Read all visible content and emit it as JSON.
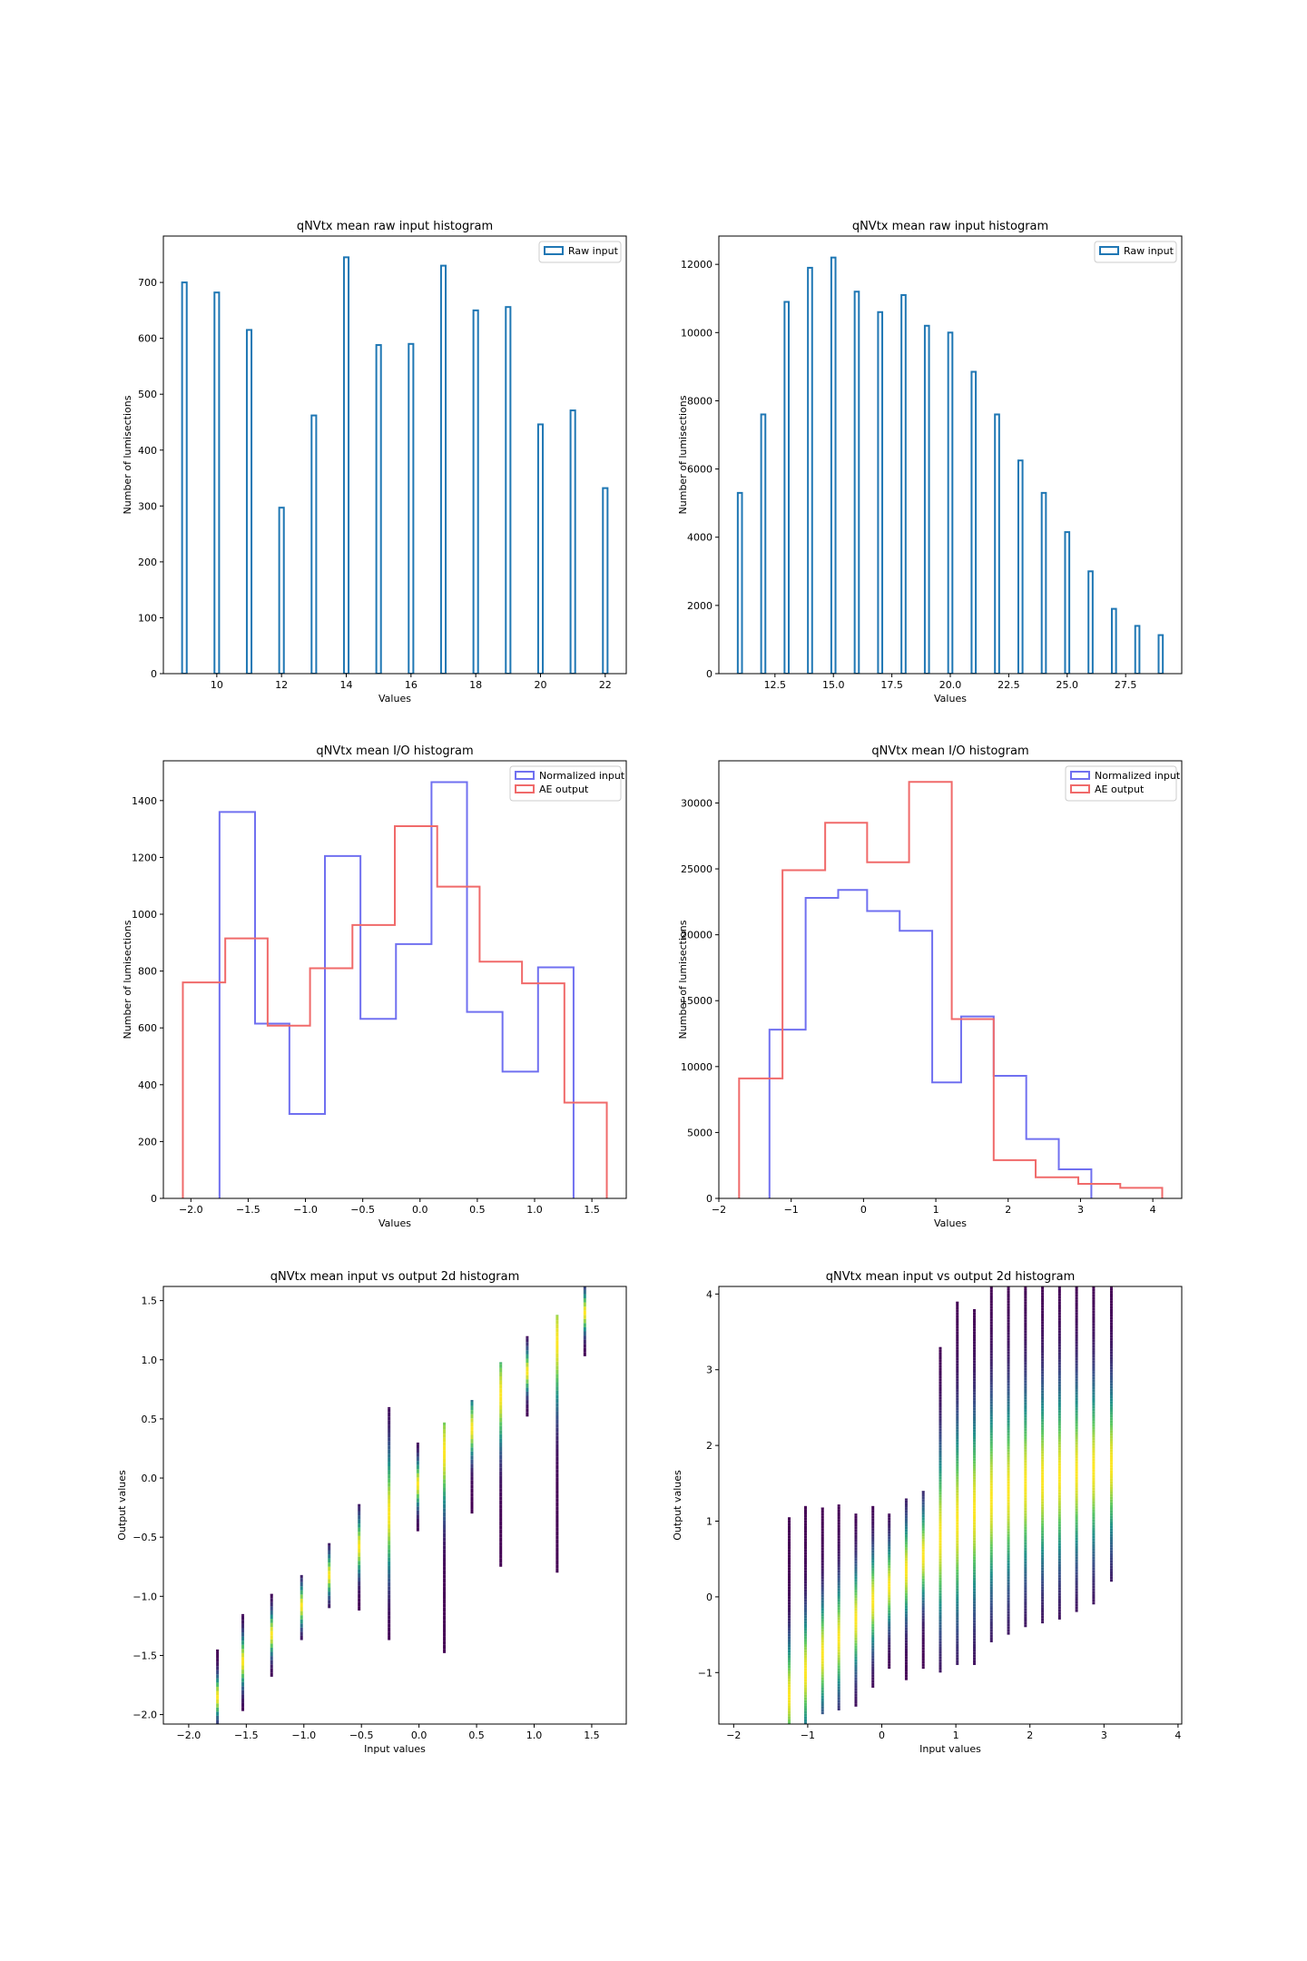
{
  "chart_data": [
    {
      "type": "bar",
      "title": "qNVtx mean raw input histogram",
      "xlabel": "Values",
      "ylabel": "Number of lumisections",
      "xlim": [
        8.35,
        22.65
      ],
      "ylim": [
        0,
        783
      ],
      "xticks": [
        10,
        12,
        14,
        16,
        18,
        20,
        22
      ],
      "yticks": [
        0,
        100,
        200,
        300,
        400,
        500,
        600,
        700
      ],
      "bar_width": 0.143,
      "histtype": "step",
      "legend_position": "upper-right",
      "series": [
        {
          "name": "Raw input",
          "color": "#1f77b4",
          "x": [
            9,
            10,
            11,
            12,
            13,
            14,
            15,
            16,
            17,
            18,
            19,
            20,
            21,
            22
          ],
          "values": [
            700,
            682,
            615,
            297,
            462,
            745,
            588,
            590,
            730,
            650,
            656,
            446,
            471,
            332
          ]
        }
      ]
    },
    {
      "type": "bar",
      "title": "qNVtx mean raw input histogram",
      "xlabel": "Values",
      "ylabel": "Number of lumisections",
      "xlim": [
        10.1,
        29.9
      ],
      "ylim": [
        0,
        12830
      ],
      "xticks": [
        12.5,
        15.0,
        17.5,
        20.0,
        22.5,
        25.0,
        27.5
      ],
      "xtick_labels": [
        "12.5",
        "15.0",
        "17.5",
        "20.0",
        "22.5",
        "25.0",
        "27.5"
      ],
      "yticks": [
        0,
        2000,
        4000,
        6000,
        8000,
        10000,
        12000
      ],
      "bar_width": 0.18,
      "histtype": "step",
      "legend_position": "upper-right",
      "series": [
        {
          "name": "Raw input",
          "color": "#1f77b4",
          "x": [
            11,
            12,
            13,
            14,
            15,
            16,
            17,
            18,
            19,
            20,
            21,
            22,
            23,
            24,
            25,
            26,
            27,
            28,
            29
          ],
          "values": [
            5300,
            7600,
            10900,
            11900,
            12200,
            11200,
            10600,
            11100,
            10200,
            10000,
            8850,
            7600,
            6250,
            5300,
            4150,
            3000,
            1900,
            1400,
            1130
          ]
        }
      ]
    },
    {
      "type": "line",
      "title": "qNVtx mean I/O histogram",
      "xlabel": "Values",
      "ylabel": "Number of lumisections",
      "xlim": [
        -2.24,
        1.8
      ],
      "ylim": [
        0,
        1540
      ],
      "xticks": [
        -2.0,
        -1.5,
        -1.0,
        -0.5,
        0.0,
        0.5,
        1.0,
        1.5
      ],
      "xtick_labels": [
        "−2.0",
        "−1.5",
        "−1.0",
        "−0.5",
        "0.0",
        "0.5",
        "1.0",
        "1.5"
      ],
      "yticks": [
        0,
        200,
        400,
        600,
        800,
        1000,
        1200,
        1400
      ],
      "histtype": "step",
      "legend_position": "upper-right",
      "series": [
        {
          "name": "Normalized input",
          "color": "#7070f0",
          "edges": [
            -1.75,
            -1.44,
            -1.14,
            -0.83,
            -0.52,
            -0.21,
            0.1,
            0.41,
            0.72,
            1.03,
            1.34
          ],
          "values": [
            1360,
            615,
            297,
            1205,
            632,
            895,
            1465,
            656,
            446,
            813
          ]
        },
        {
          "name": "AE output",
          "color": "#f06a6a",
          "edges": [
            -2.07,
            -1.7,
            -1.33,
            -0.96,
            -0.59,
            -0.22,
            0.15,
            0.52,
            0.89,
            1.26,
            1.63
          ],
          "values": [
            760,
            915,
            608,
            810,
            962,
            1310,
            1097,
            833,
            757,
            337
          ]
        }
      ]
    },
    {
      "type": "line",
      "title": "qNVtx mean I/O histogram",
      "xlabel": "Values",
      "ylabel": "Number of lumisections",
      "xlim": [
        -2.0,
        4.4
      ],
      "ylim": [
        0,
        33200
      ],
      "xticks": [
        -2,
        -1,
        0,
        1,
        2,
        3,
        4
      ],
      "xtick_labels": [
        "−2",
        "−1",
        "0",
        "1",
        "2",
        "3",
        "4"
      ],
      "yticks": [
        0,
        5000,
        10000,
        15000,
        20000,
        25000,
        30000
      ],
      "histtype": "step",
      "legend_position": "upper-right",
      "series": [
        {
          "name": "Normalized input",
          "color": "#7070f0",
          "edges": [
            -1.3,
            -0.8,
            -0.35,
            0.05,
            0.5,
            0.95,
            1.35,
            1.8,
            2.25,
            2.7,
            3.15
          ],
          "values": [
            12800,
            22800,
            23400,
            21800,
            20300,
            8800,
            13800,
            9300,
            4500,
            2200
          ]
        },
        {
          "name": "AE output",
          "color": "#f06a6a",
          "edges": [
            -1.72,
            -1.12,
            -0.53,
            0.05,
            0.63,
            1.22,
            1.8,
            2.38,
            2.97,
            3.55,
            4.13
          ],
          "values": [
            9100,
            24900,
            28500,
            25500,
            31600,
            13600,
            2900,
            1600,
            1100,
            800
          ]
        }
      ]
    },
    {
      "type": "heatmap",
      "title": "qNVtx mean input vs output 2d histogram",
      "xlabel": "Input values",
      "ylabel": "Output values",
      "xlim": [
        -2.22,
        1.8
      ],
      "ylim": [
        -2.08,
        1.62
      ],
      "xticks": [
        -2.0,
        -1.5,
        -1.0,
        -0.5,
        0.0,
        0.5,
        1.0,
        1.5
      ],
      "xtick_labels": [
        "−2.0",
        "−1.5",
        "−1.0",
        "−0.5",
        "0.0",
        "0.5",
        "1.0",
        "1.5"
      ],
      "yticks": [
        -2.0,
        -1.5,
        -1.0,
        -0.5,
        0.0,
        0.5,
        1.0,
        1.5
      ],
      "ytick_labels": [
        "−2.0",
        "−1.5",
        "−1.0",
        "−0.5",
        "0.0",
        "0.5",
        "1.0",
        "1.5"
      ],
      "colormap": [
        "#440154",
        "#3b528b",
        "#21918c",
        "#5ec962",
        "#fde725"
      ],
      "columns": [
        {
          "x": -1.75,
          "range": [
            -2.08,
            -1.45
          ],
          "center": -1.85
        },
        {
          "x": -1.53,
          "range": [
            -1.97,
            -1.15
          ],
          "center": -1.55
        },
        {
          "x": -1.28,
          "range": [
            -1.68,
            -0.98
          ],
          "center": -1.32
        },
        {
          "x": -1.02,
          "range": [
            -1.37,
            -0.82
          ],
          "center": -1.08
        },
        {
          "x": -0.78,
          "range": [
            -1.1,
            -0.55
          ],
          "center": -0.82
        },
        {
          "x": -0.52,
          "range": [
            -1.12,
            -0.22
          ],
          "center": -0.58
        },
        {
          "x": -0.26,
          "range": [
            -1.37,
            0.6
          ],
          "center": -0.3
        },
        {
          "x": -0.01,
          "range": [
            -0.45,
            0.3
          ],
          "center": -0.05
        },
        {
          "x": 0.22,
          "range": [
            -1.48,
            0.47
          ],
          "center": 0.22
        },
        {
          "x": 0.46,
          "range": [
            -0.3,
            0.66
          ],
          "center": 0.42
        },
        {
          "x": 0.71,
          "range": [
            -0.75,
            0.98
          ],
          "center": 0.7
        },
        {
          "x": 0.94,
          "range": [
            0.52,
            1.2
          ],
          "center": 0.9
        },
        {
          "x": 1.2,
          "range": [
            -0.8,
            1.38
          ],
          "center": 1.15
        },
        {
          "x": 1.44,
          "range": [
            1.03,
            1.62
          ],
          "center": 1.4
        }
      ]
    },
    {
      "type": "heatmap",
      "title": "qNVtx mean input vs output 2d histogram",
      "xlabel": "Input values",
      "ylabel": "Output values",
      "xlim": [
        -2.2,
        4.05
      ],
      "ylim": [
        -1.68,
        4.1
      ],
      "xticks": [
        -2,
        -1,
        0,
        1,
        2,
        3,
        4
      ],
      "xtick_labels": [
        "−2",
        "−1",
        "0",
        "1",
        "2",
        "3",
        "4"
      ],
      "yticks": [
        -1,
        0,
        1,
        2,
        3,
        4
      ],
      "ytick_labels": [
        "−1",
        "0",
        "1",
        "2",
        "3",
        "4"
      ],
      "colormap": [
        "#440154",
        "#3b528b",
        "#21918c",
        "#5ec962",
        "#fde725"
      ],
      "columns": [
        {
          "x": -1.25,
          "range": [
            -1.68,
            1.05
          ],
          "center": -1.3
        },
        {
          "x": -1.03,
          "range": [
            -1.68,
            1.2
          ],
          "center": -1.0
        },
        {
          "x": -0.8,
          "range": [
            -1.55,
            1.18
          ],
          "center": -0.75
        },
        {
          "x": -0.58,
          "range": [
            -1.5,
            1.22
          ],
          "center": -0.55
        },
        {
          "x": -0.35,
          "range": [
            -1.45,
            1.1
          ],
          "center": -0.3
        },
        {
          "x": -0.12,
          "range": [
            -1.2,
            1.2
          ],
          "center": -0.05
        },
        {
          "x": 0.1,
          "range": [
            -0.95,
            1.1
          ],
          "center": 0.15
        },
        {
          "x": 0.33,
          "range": [
            -1.1,
            1.3
          ],
          "center": 0.35
        },
        {
          "x": 0.56,
          "range": [
            -0.95,
            1.4
          ],
          "center": 0.55
        },
        {
          "x": 0.79,
          "range": [
            -1.0,
            3.3
          ],
          "center": 0.8
        },
        {
          "x": 1.02,
          "range": [
            -0.9,
            3.9
          ],
          "center": 1.0
        },
        {
          "x": 1.25,
          "range": [
            -0.9,
            3.8
          ],
          "center": 1.15
        },
        {
          "x": 1.48,
          "range": [
            -0.6,
            4.1
          ],
          "center": 1.3
        },
        {
          "x": 1.71,
          "range": [
            -0.5,
            4.1
          ],
          "center": 1.4
        },
        {
          "x": 1.94,
          "range": [
            -0.4,
            4.1
          ],
          "center": 1.5
        },
        {
          "x": 2.17,
          "range": [
            -0.35,
            4.1
          ],
          "center": 1.55
        },
        {
          "x": 2.4,
          "range": [
            -0.3,
            4.1
          ],
          "center": 1.6
        },
        {
          "x": 2.63,
          "range": [
            -0.2,
            4.1
          ],
          "center": 1.65
        },
        {
          "x": 2.86,
          "range": [
            -0.1,
            4.1
          ],
          "center": 1.7
        },
        {
          "x": 3.1,
          "range": [
            0.2,
            4.1
          ],
          "center": 1.75
        }
      ]
    }
  ]
}
